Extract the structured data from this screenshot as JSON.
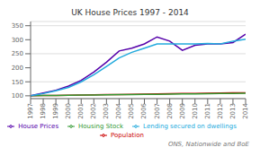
{
  "chart_data": {
    "type": "line",
    "title": "UK House Prices 1997 - 2014",
    "x": [
      1997,
      1998,
      1999,
      2000,
      2001,
      2002,
      2003,
      2004,
      2005,
      2006,
      2007,
      2008,
      2009,
      2010,
      2011,
      2012,
      2013,
      2014
    ],
    "series": [
      {
        "name": "Population",
        "color": "#cc0000",
        "values": [
          100,
          101,
          101.5,
          102,
          103,
          103.5,
          104,
          104.5,
          105,
          106,
          107,
          107.5,
          108,
          108.5,
          109,
          110,
          110.5,
          111
        ]
      },
      {
        "name": "Housing Stock",
        "color": "#339933",
        "values": [
          100,
          101,
          101.5,
          102,
          102.5,
          103,
          103.5,
          104,
          104.5,
          105,
          105.5,
          106,
          106.5,
          107,
          107.5,
          108,
          108.5,
          109
        ]
      },
      {
        "name": "House Prices",
        "color": "#5500aa",
        "values": [
          100,
          110,
          120,
          135,
          155,
          185,
          220,
          260,
          270,
          285,
          310,
          295,
          262,
          280,
          285,
          285,
          290,
          320
        ]
      },
      {
        "name": "Lending secured on dwellings",
        "color": "#22aadd",
        "values": [
          100,
          108,
          118,
          130,
          150,
          175,
          205,
          235,
          255,
          270,
          285,
          285,
          285,
          285,
          287,
          285,
          295,
          302
        ]
      }
    ],
    "xlim": [
      1997,
      2014
    ],
    "xticks": [
      1997,
      1998,
      1999,
      2000,
      2001,
      2002,
      2003,
      2004,
      2005,
      2006,
      2007,
      2008,
      2009,
      2010,
      2011,
      2012,
      2013,
      2014
    ],
    "ylim": [
      90,
      365
    ],
    "yticks": [
      100,
      150,
      200,
      250,
      300,
      350
    ],
    "grid": true,
    "legend": "bottom",
    "annotations": [
      "ONS, Nationwide and BoE"
    ]
  }
}
